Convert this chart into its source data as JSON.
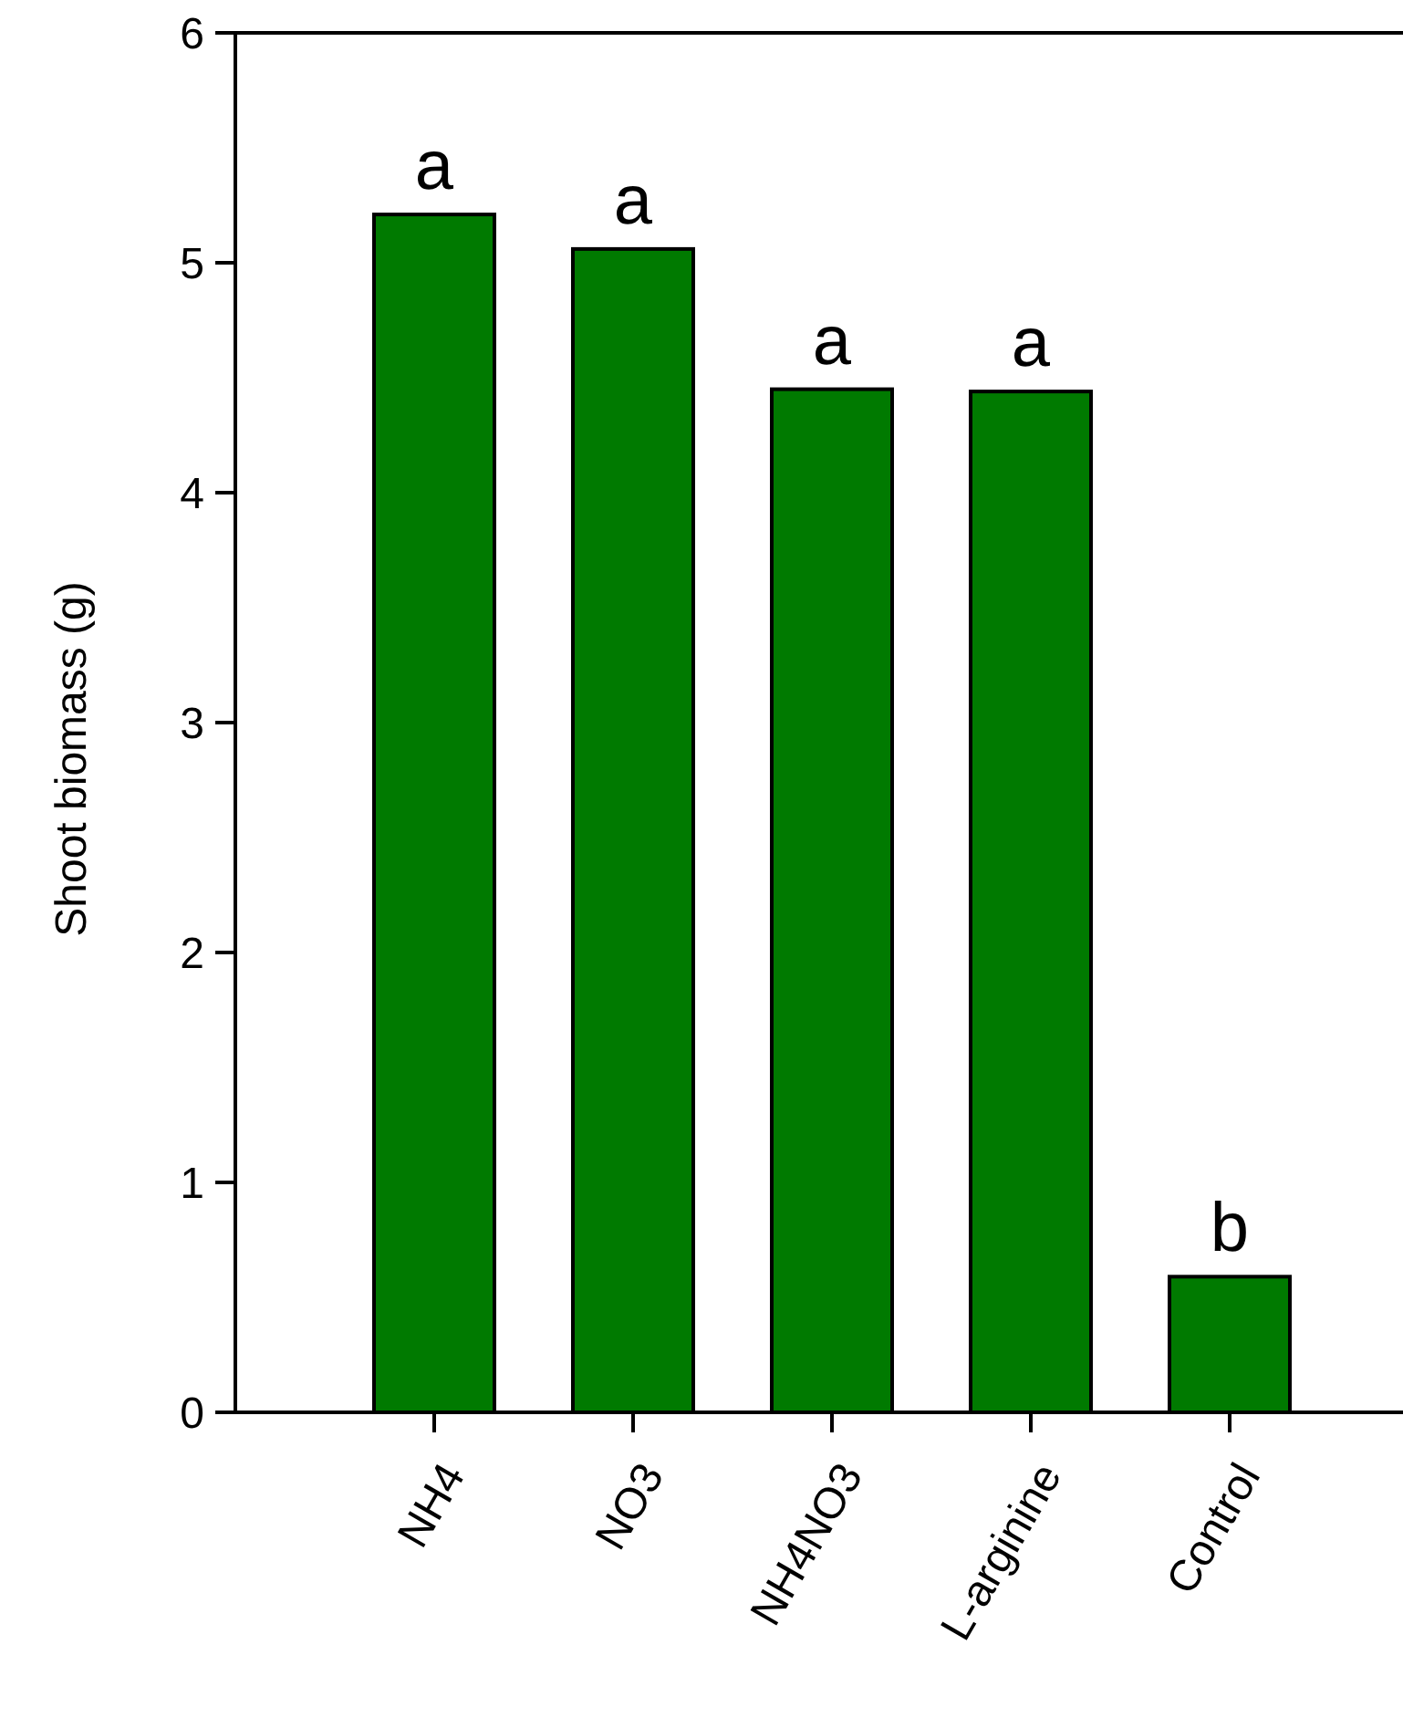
{
  "chart_data": {
    "type": "bar",
    "ylabel": "Shoot biomass (g)",
    "categories": [
      "NH4",
      "NO3",
      "NH4NO3",
      "L-arginine",
      "Control"
    ],
    "values": [
      5.21,
      5.06,
      4.45,
      4.44,
      0.59
    ],
    "color": "#007a00",
    "ylim": [
      0,
      6
    ],
    "yticks": [
      0,
      1,
      2,
      3,
      4,
      5,
      6
    ],
    "grid": false,
    "annotations": [
      {
        "text": "a",
        "x": "NH4",
        "y": 5.21
      },
      {
        "text": "a",
        "x": "NO3",
        "y": 5.06
      },
      {
        "text": "a",
        "x": "NH4NO3",
        "y": 4.45
      },
      {
        "text": "a",
        "x": "L-arginine",
        "y": 4.44
      },
      {
        "text": "b",
        "x": "Control",
        "y": 0.59
      }
    ]
  }
}
